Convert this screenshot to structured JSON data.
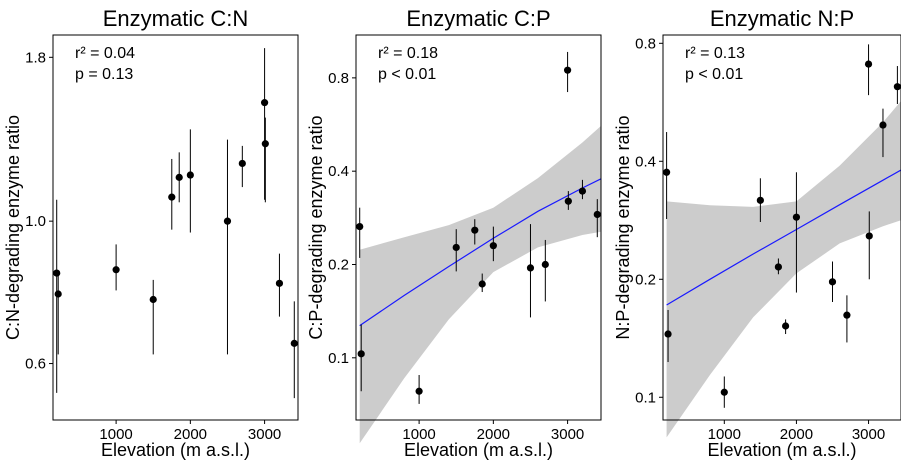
{
  "chart_data": [
    {
      "type": "scatter",
      "title": "Enzymatic C:N",
      "xlabel": "Elevation (m a.s.l.)",
      "ylabel": "C:N-degrading enzyme ratio",
      "y_scale": "log",
      "xlim": [
        150,
        3450
      ],
      "ylim": [
        0.49,
        1.95
      ],
      "x_ticks": [
        1000,
        2000,
        3000
      ],
      "x_tick_labels": [
        "1000",
        "2000",
        "3000"
      ],
      "y_ticks": [
        0.6,
        1.0,
        1.8
      ],
      "y_tick_labels": [
        "0.6",
        "1.0",
        "1.8"
      ],
      "grid": false,
      "stats": [
        "r² = 0.04",
        "p = 0.13"
      ],
      "regression": null,
      "points": [
        {
          "x": 200,
          "y": 0.83,
          "lo": 0.54,
          "hi": 1.08
        },
        {
          "x": 220,
          "y": 0.77,
          "lo": 0.62,
          "hi": 0.83
        },
        {
          "x": 1000,
          "y": 0.84,
          "lo": 0.78,
          "hi": 0.92
        },
        {
          "x": 1500,
          "y": 0.755,
          "lo": 0.62,
          "hi": 0.81
        },
        {
          "x": 1750,
          "y": 1.09,
          "lo": 0.97,
          "hi": 1.25
        },
        {
          "x": 1850,
          "y": 1.17,
          "lo": 1.07,
          "hi": 1.28
        },
        {
          "x": 2000,
          "y": 1.18,
          "lo": 0.96,
          "hi": 1.39
        },
        {
          "x": 2500,
          "y": 1.0,
          "lo": 0.62,
          "hi": 1.34
        },
        {
          "x": 2700,
          "y": 1.23,
          "lo": 1.13,
          "hi": 1.31
        },
        {
          "x": 3000,
          "y": 1.53,
          "lo": 1.08,
          "hi": 1.86
        },
        {
          "x": 3010,
          "y": 1.32,
          "lo": 1.07,
          "hi": 1.45
        },
        {
          "x": 3200,
          "y": 0.8,
          "lo": 0.71,
          "hi": 0.89
        },
        {
          "x": 3400,
          "y": 0.645,
          "lo": 0.53,
          "hi": 0.75
        }
      ]
    },
    {
      "type": "scatter",
      "title": "Enzymatic C:P",
      "xlabel": "Elevation (m a.s.l.)",
      "ylabel": "C:P-degrading enzyme ratio",
      "y_scale": "log",
      "xlim": [
        150,
        3450
      ],
      "ylim": [
        0.063,
        1.1
      ],
      "x_ticks": [
        1000,
        2000,
        3000
      ],
      "x_tick_labels": [
        "1000",
        "2000",
        "3000"
      ],
      "y_ticks": [
        0.1,
        0.2,
        0.4,
        0.8
      ],
      "y_tick_labels": [
        "0.1",
        "0.2",
        "0.4",
        "0.8"
      ],
      "grid": false,
      "stats": [
        "r² = 0.18",
        "p < 0.01"
      ],
      "regression": {
        "x": [
          200,
          800,
          1400,
          2000,
          2600,
          3200,
          3450
        ],
        "fit": [
          0.127,
          0.159,
          0.197,
          0.243,
          0.297,
          0.353,
          0.378
        ],
        "lo": [
          0.053,
          0.086,
          0.133,
          0.189,
          0.227,
          0.249,
          0.255
        ],
        "hi": [
          0.223,
          0.245,
          0.268,
          0.305,
          0.38,
          0.495,
          0.56
        ]
      },
      "points": [
        {
          "x": 200,
          "y": 0.265,
          "lo": 0.21,
          "hi": 0.305
        },
        {
          "x": 220,
          "y": 0.103,
          "lo": 0.078,
          "hi": 0.128
        },
        {
          "x": 1000,
          "y": 0.078,
          "lo": 0.071,
          "hi": 0.088
        },
        {
          "x": 1500,
          "y": 0.227,
          "lo": 0.19,
          "hi": 0.26
        },
        {
          "x": 1750,
          "y": 0.258,
          "lo": 0.232,
          "hi": 0.28
        },
        {
          "x": 1850,
          "y": 0.173,
          "lo": 0.163,
          "hi": 0.187
        },
        {
          "x": 2000,
          "y": 0.23,
          "lo": 0.205,
          "hi": 0.265
        },
        {
          "x": 2500,
          "y": 0.195,
          "lo": 0.135,
          "hi": 0.27
        },
        {
          "x": 2700,
          "y": 0.2,
          "lo": 0.152,
          "hi": 0.24
        },
        {
          "x": 3000,
          "y": 0.847,
          "lo": 0.72,
          "hi": 0.97
        },
        {
          "x": 3010,
          "y": 0.32,
          "lo": 0.3,
          "hi": 0.345
        },
        {
          "x": 3200,
          "y": 0.345,
          "lo": 0.325,
          "hi": 0.375
        },
        {
          "x": 3400,
          "y": 0.29,
          "lo": 0.245,
          "hi": 0.325
        }
      ]
    },
    {
      "type": "scatter",
      "title": "Enzymatic N:P",
      "xlabel": "Elevation (m a.s.l.)",
      "ylabel": "N:P-degrading enzyme ratio",
      "y_scale": "log",
      "xlim": [
        150,
        3450
      ],
      "ylim": [
        0.0875,
        0.84
      ],
      "x_ticks": [
        1000,
        2000,
        3000
      ],
      "x_tick_labels": [
        "1000",
        "2000",
        "3000"
      ],
      "y_ticks": [
        0.1,
        0.2,
        0.4,
        0.8
      ],
      "y_tick_labels": [
        "0.1",
        "0.2",
        "0.4",
        "0.8"
      ],
      "grid": false,
      "stats": [
        "r² = 0.13",
        "p < 0.01"
      ],
      "regression": {
        "x": [
          200,
          800,
          1400,
          2000,
          2600,
          3200,
          3450
        ],
        "fit": [
          0.172,
          0.2,
          0.232,
          0.268,
          0.31,
          0.358,
          0.38
        ],
        "lo": [
          0.079,
          0.114,
          0.16,
          0.207,
          0.247,
          0.273,
          0.283
        ],
        "hi": [
          0.316,
          0.309,
          0.306,
          0.316,
          0.39,
          0.503,
          0.57
        ]
      },
      "points": [
        {
          "x": 200,
          "y": 0.375,
          "lo": 0.285,
          "hi": 0.475
        },
        {
          "x": 220,
          "y": 0.145,
          "lo": 0.123,
          "hi": 0.167
        },
        {
          "x": 1000,
          "y": 0.103,
          "lo": 0.094,
          "hi": 0.113
        },
        {
          "x": 1500,
          "y": 0.318,
          "lo": 0.28,
          "hi": 0.362
        },
        {
          "x": 1750,
          "y": 0.215,
          "lo": 0.206,
          "hi": 0.226
        },
        {
          "x": 1850,
          "y": 0.152,
          "lo": 0.145,
          "hi": 0.158
        },
        {
          "x": 2000,
          "y": 0.288,
          "lo": 0.185,
          "hi": 0.375
        },
        {
          "x": 2500,
          "y": 0.197,
          "lo": 0.175,
          "hi": 0.222
        },
        {
          "x": 2700,
          "y": 0.162,
          "lo": 0.138,
          "hi": 0.182
        },
        {
          "x": 3000,
          "y": 0.708,
          "lo": 0.59,
          "hi": 0.795
        },
        {
          "x": 3010,
          "y": 0.258,
          "lo": 0.2,
          "hi": 0.298
        },
        {
          "x": 3200,
          "y": 0.495,
          "lo": 0.41,
          "hi": 0.545
        },
        {
          "x": 3400,
          "y": 0.62,
          "lo": 0.56,
          "hi": 0.7
        }
      ]
    }
  ],
  "colors": {
    "point": "#000000",
    "error_bar": "#000000",
    "regression_line": "#1a1aff",
    "confidence_band": "#cccccc",
    "panel_border": "#000000",
    "background": "#ffffff"
  }
}
